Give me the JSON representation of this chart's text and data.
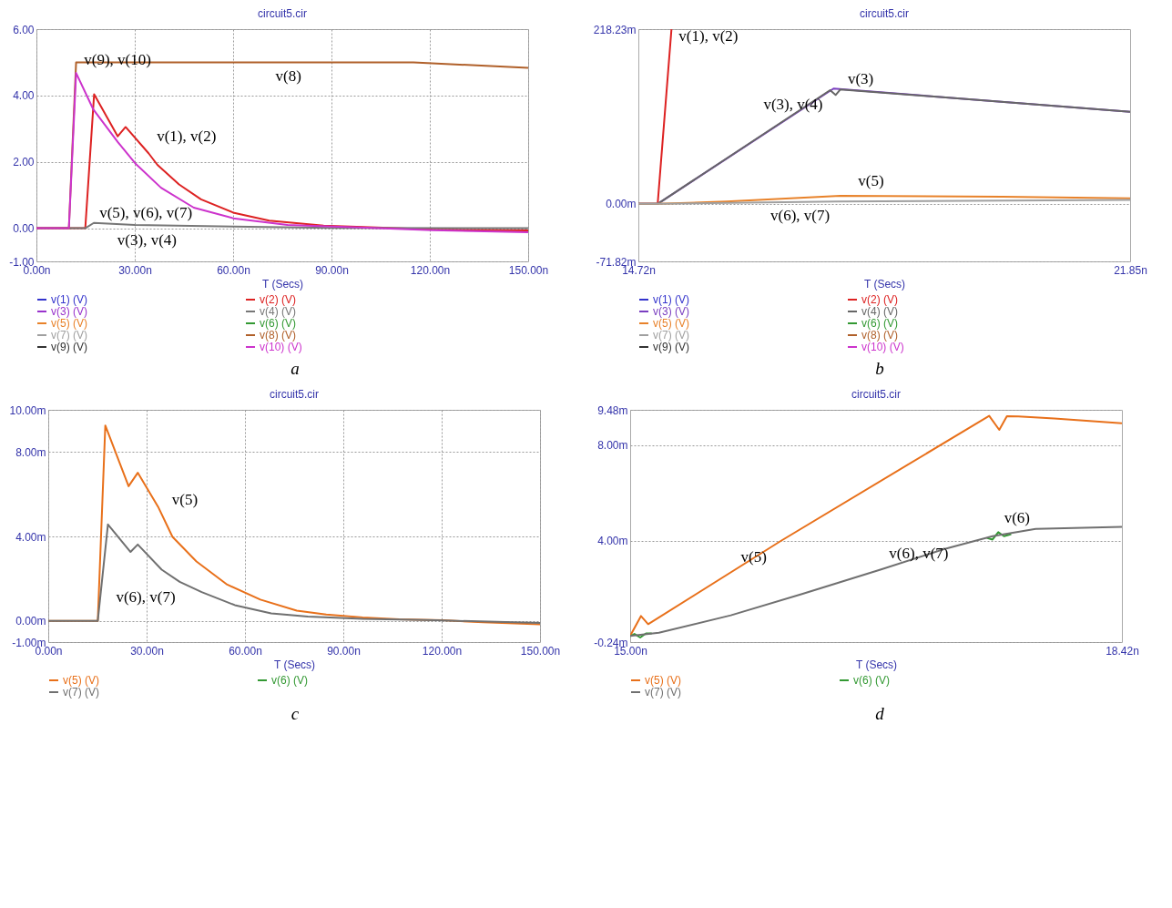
{
  "chart_data": [
    {
      "type": "line",
      "title": "circuit5.cir",
      "xlabel": "T (Secs)",
      "xlim": [
        0,
        150
      ],
      "xticks": [
        {
          "value": 0,
          "label": "0.00n"
        },
        {
          "value": 30,
          "label": "30.00n"
        },
        {
          "value": 60,
          "label": "60.00n"
        },
        {
          "value": 90,
          "label": "90.00n"
        },
        {
          "value": 120,
          "label": "120.00n"
        },
        {
          "value": 150,
          "label": "150.00n"
        }
      ],
      "ylim": [
        -1,
        6
      ],
      "yticks": [
        {
          "value": -1,
          "label": "-1.00"
        },
        {
          "value": 0,
          "label": "0.00"
        },
        {
          "value": 2,
          "label": "2.00"
        },
        {
          "value": 4,
          "label": "4.00"
        },
        {
          "value": 6,
          "label": "6.00"
        }
      ],
      "grid": true,
      "legend": "bottom",
      "series": [
        {
          "name": "v(1) (V)",
          "color": "#3333cc"
        },
        {
          "name": "v(2) (V)",
          "color": "#dd2222",
          "x": [
            0,
            14.9,
            17.6,
            24.8,
            27.2,
            34.2,
            36.9,
            43.5,
            50.2,
            60,
            71,
            87.6,
            109.7,
            120.7,
            150
          ],
          "values": [
            0,
            0,
            4.04,
            2.77,
            3.05,
            2.26,
            1.91,
            1.32,
            0.87,
            0.47,
            0.23,
            0.08,
            0,
            -0.04,
            -0.07
          ]
        },
        {
          "name": "v(3) (V)",
          "color": "#9933cc"
        },
        {
          "name": "v(4) (V)",
          "color": "#777777",
          "x": [
            0,
            14.9,
            17.5,
            30,
            60,
            90,
            150
          ],
          "values": [
            0,
            0,
            0.16,
            0.1,
            0.05,
            0.01,
            0
          ]
        },
        {
          "name": "v(5) (V)",
          "color": "#e8822a"
        },
        {
          "name": "v(6) (V)",
          "color": "#339933"
        },
        {
          "name": "v(7) (V)",
          "color": "#a0a0a0"
        },
        {
          "name": "v(8) (V)",
          "color": "#b0602a",
          "x": [
            0,
            9.9,
            12.1,
            115,
            150
          ],
          "values": [
            0,
            0,
            5.0,
            5.0,
            4.83
          ]
        },
        {
          "name": "v(9) (V)",
          "color": "#333333"
        },
        {
          "name": "v(10) (V)",
          "color": "#cc33cc",
          "x": [
            0,
            9.9,
            12.1,
            17.3,
            24.8,
            30.1,
            38,
            48,
            60,
            76.6,
            98.7,
            120.7,
            150
          ],
          "values": [
            0,
            0,
            4.68,
            3.59,
            2.6,
            1.96,
            1.22,
            0.62,
            0.3,
            0.1,
            0.02,
            -0.06,
            -0.12
          ]
        }
      ],
      "annotations": [
        {
          "text": "v(9),  v(10)",
          "x": 12.3,
          "y": 4.6
        },
        {
          "text": "v(8)",
          "x": 83,
          "y": 5.0
        },
        {
          "text": "v(1),  v(2)",
          "x": 34.5,
          "y": 2.3
        },
        {
          "text": "v(3),  v(4)",
          "x": 45,
          "y": 0.07
        },
        {
          "text": "v(5),  v(6),  v(7)",
          "x": 17,
          "y": 0
        },
        "a"
      ]
    },
    {
      "type": "line",
      "title": "circuit5.cir",
      "xlabel": "T (Secs)",
      "xlim": [
        14.72,
        21.85
      ],
      "xticks": [
        {
          "value": 14.72,
          "label": "14.72n"
        },
        {
          "value": 21.85,
          "label": "21.85n"
        }
      ],
      "ylim": [
        -71.82,
        218.23
      ],
      "yticks": [
        {
          "value": -71.82,
          "label": "-71.82m"
        },
        {
          "value": 0,
          "label": "0.00m"
        },
        {
          "value": 218.23,
          "label": "218.23m"
        }
      ],
      "grid": "y",
      "legend": "bottom",
      "series": [
        {
          "name": "v(1) (V)",
          "color": "#3333cc"
        },
        {
          "name": "v(2) (V)",
          "color": "#dd2222",
          "x": [
            14.72,
            15.0,
            15.2
          ],
          "values": [
            0,
            0,
            218
          ]
        },
        {
          "name": "v(3) (V)",
          "color": "#7a3fc0",
          "x": [
            14.72,
            15.0,
            17.55,
            21.85
          ],
          "values": [
            0,
            0,
            144,
            115
          ]
        },
        {
          "name": "v(4) (V)",
          "color": "#666666",
          "x": [
            14.72,
            15.0,
            17.5,
            17.58,
            17.65,
            21.85
          ],
          "values": [
            0,
            0,
            142,
            136,
            143,
            115
          ]
        },
        {
          "name": "v(5) (V)",
          "color": "#e8822a",
          "x": [
            14.72,
            15.0,
            16.0,
            17.65,
            20.0,
            21.85
          ],
          "values": [
            0,
            0,
            3,
            10,
            9,
            7
          ]
        },
        {
          "name": "v(6) (V)",
          "color": "#339933"
        },
        {
          "name": "v(7) (V)",
          "color": "#a0a0a0",
          "x": [
            14.72,
            15.0,
            17.6,
            21.85
          ],
          "values": [
            0,
            0,
            3,
            5
          ]
        },
        {
          "name": "v(8) (V)",
          "color": "#b0602a"
        },
        {
          "name": "v(9) (V)",
          "color": "#333333"
        },
        {
          "name": "v(10) (V)",
          "color": "#cc33cc"
        }
      ],
      "annotations": [
        {
          "text": "v(1),  v(2)",
          "x": 15.2,
          "y": 190
        },
        {
          "text": "v(3),  v(4)",
          "x": 17.5,
          "y": 142
        },
        {
          "text": "v(5)",
          "x": 17.8,
          "y": 9.4
        },
        {
          "text": "v(6),  v(7)",
          "x": 17.6,
          "y": 3.5
        },
        {
          "text": "v(3)",
          "x": 17.65,
          "y": 136
        },
        "b"
      ]
    },
    {
      "type": "line",
      "title": "circuit5.cir",
      "xlabel": "T (Secs)",
      "xlim": [
        0,
        150
      ],
      "xticks": [
        {
          "value": 0,
          "label": "0.00n"
        },
        {
          "value": 30,
          "label": "30.00n"
        },
        {
          "value": 60,
          "label": "60.00n"
        },
        {
          "value": 90,
          "label": "90.00n"
        },
        {
          "value": 120,
          "label": "120.00n"
        },
        {
          "value": 150,
          "label": "150.00n"
        }
      ],
      "ylim": [
        -1,
        10
      ],
      "yticks": [
        {
          "value": -1,
          "label": "-1.00m"
        },
        {
          "value": 0,
          "label": "0.00m"
        },
        {
          "value": 4,
          "label": "4.00m"
        },
        {
          "value": 8,
          "label": "8.00m"
        },
        {
          "value": 10,
          "label": "10.00m"
        }
      ],
      "grid": true,
      "legend": "bottom",
      "series": [
        {
          "name": "v(5) (V)",
          "color": "#e8701a",
          "x": [
            0,
            15.1,
            17.4,
            24.5,
            27.3,
            33.5,
            37.9,
            45.2,
            54.6,
            64.7,
            75.8,
            84.8,
            95.9,
            107,
            120.4,
            132.7,
            150
          ],
          "values": [
            0,
            0,
            9.26,
            6.38,
            7.02,
            5.41,
            3.98,
            2.82,
            1.72,
            1.01,
            0.49,
            0.3,
            0.17,
            0.08,
            0.03,
            -0.06,
            -0.16
          ]
        },
        {
          "name": "v(6) (V)",
          "color": "#339933"
        },
        {
          "name": "v(7) (V)",
          "color": "#707070",
          "x": [
            0,
            15.1,
            18.2,
            25.1,
            27.3,
            34.6,
            40.1,
            46.8,
            56.9,
            68,
            79.2,
            95.9,
            118.2,
            150
          ],
          "values": [
            0,
            0,
            4.57,
            3.27,
            3.62,
            2.43,
            1.85,
            1.37,
            0.75,
            0.36,
            0.21,
            0.1,
            0.03,
            -0.09
          ]
        }
      ],
      "annotations": [
        {
          "text": "v(5)",
          "x": 35.5,
          "y": 5.0
        },
        {
          "text": "v(6),  v(7)",
          "x": 41,
          "y": 1.8
        },
        "c"
      ]
    },
    {
      "type": "line",
      "title": "circuit5.cir",
      "xlabel": "T (Secs)",
      "xlim": [
        15,
        18.42
      ],
      "xticks": [
        {
          "value": 15,
          "label": "15.00n"
        },
        {
          "value": 18.42,
          "label": "18.42n"
        }
      ],
      "ylim": [
        -0.24,
        9.48
      ],
      "yticks": [
        {
          "value": -0.24,
          "label": "-0.24m"
        },
        {
          "value": 4,
          "label": "4.00m"
        },
        {
          "value": 8,
          "label": "8.00m"
        },
        {
          "value": 9.48,
          "label": "9.48m"
        }
      ],
      "grid": "y",
      "legend": "bottom",
      "series": [
        {
          "name": "v(5) (V)",
          "color": "#e8701a",
          "x": [
            15.0,
            15.075,
            15.125,
            16.05,
            17.497,
            17.567,
            17.62,
            17.7,
            17.95,
            18.42
          ],
          "values": [
            0.02,
            0.85,
            0.51,
            4.0,
            9.23,
            8.64,
            9.21,
            9.2,
            9.12,
            8.92
          ]
        },
        {
          "name": "v(6) (V)",
          "color": "#339933",
          "x": [
            15.0,
            15.03,
            15.07,
            15.11,
            15.15,
            16.5,
            17.48,
            17.52,
            17.56,
            17.6,
            17.65
          ],
          "values": [
            0.0,
            0.1,
            -0.05,
            0.12,
            0.12,
            null,
            4.12,
            4.05,
            4.36,
            4.19,
            4.28
          ]
        },
        {
          "name": "v(7) (V)",
          "color": "#707070",
          "x": [
            15.0,
            15.2,
            15.7,
            16.2,
            16.74,
            17.2,
            17.52,
            17.82,
            18.42
          ],
          "values": [
            0.02,
            0.15,
            0.88,
            1.78,
            2.79,
            3.68,
            4.19,
            4.5,
            4.58
          ]
        }
      ],
      "annotations": [
        {
          "text": "v(6)",
          "x": 17.55,
          "y": 4.3
        },
        {
          "text": "v(5)",
          "x": 16.0,
          "y": 3.9
        },
        {
          "text": "v(6),  v(7)",
          "x": 16.75,
          "y": 2.8
        },
        "d"
      ]
    }
  ]
}
